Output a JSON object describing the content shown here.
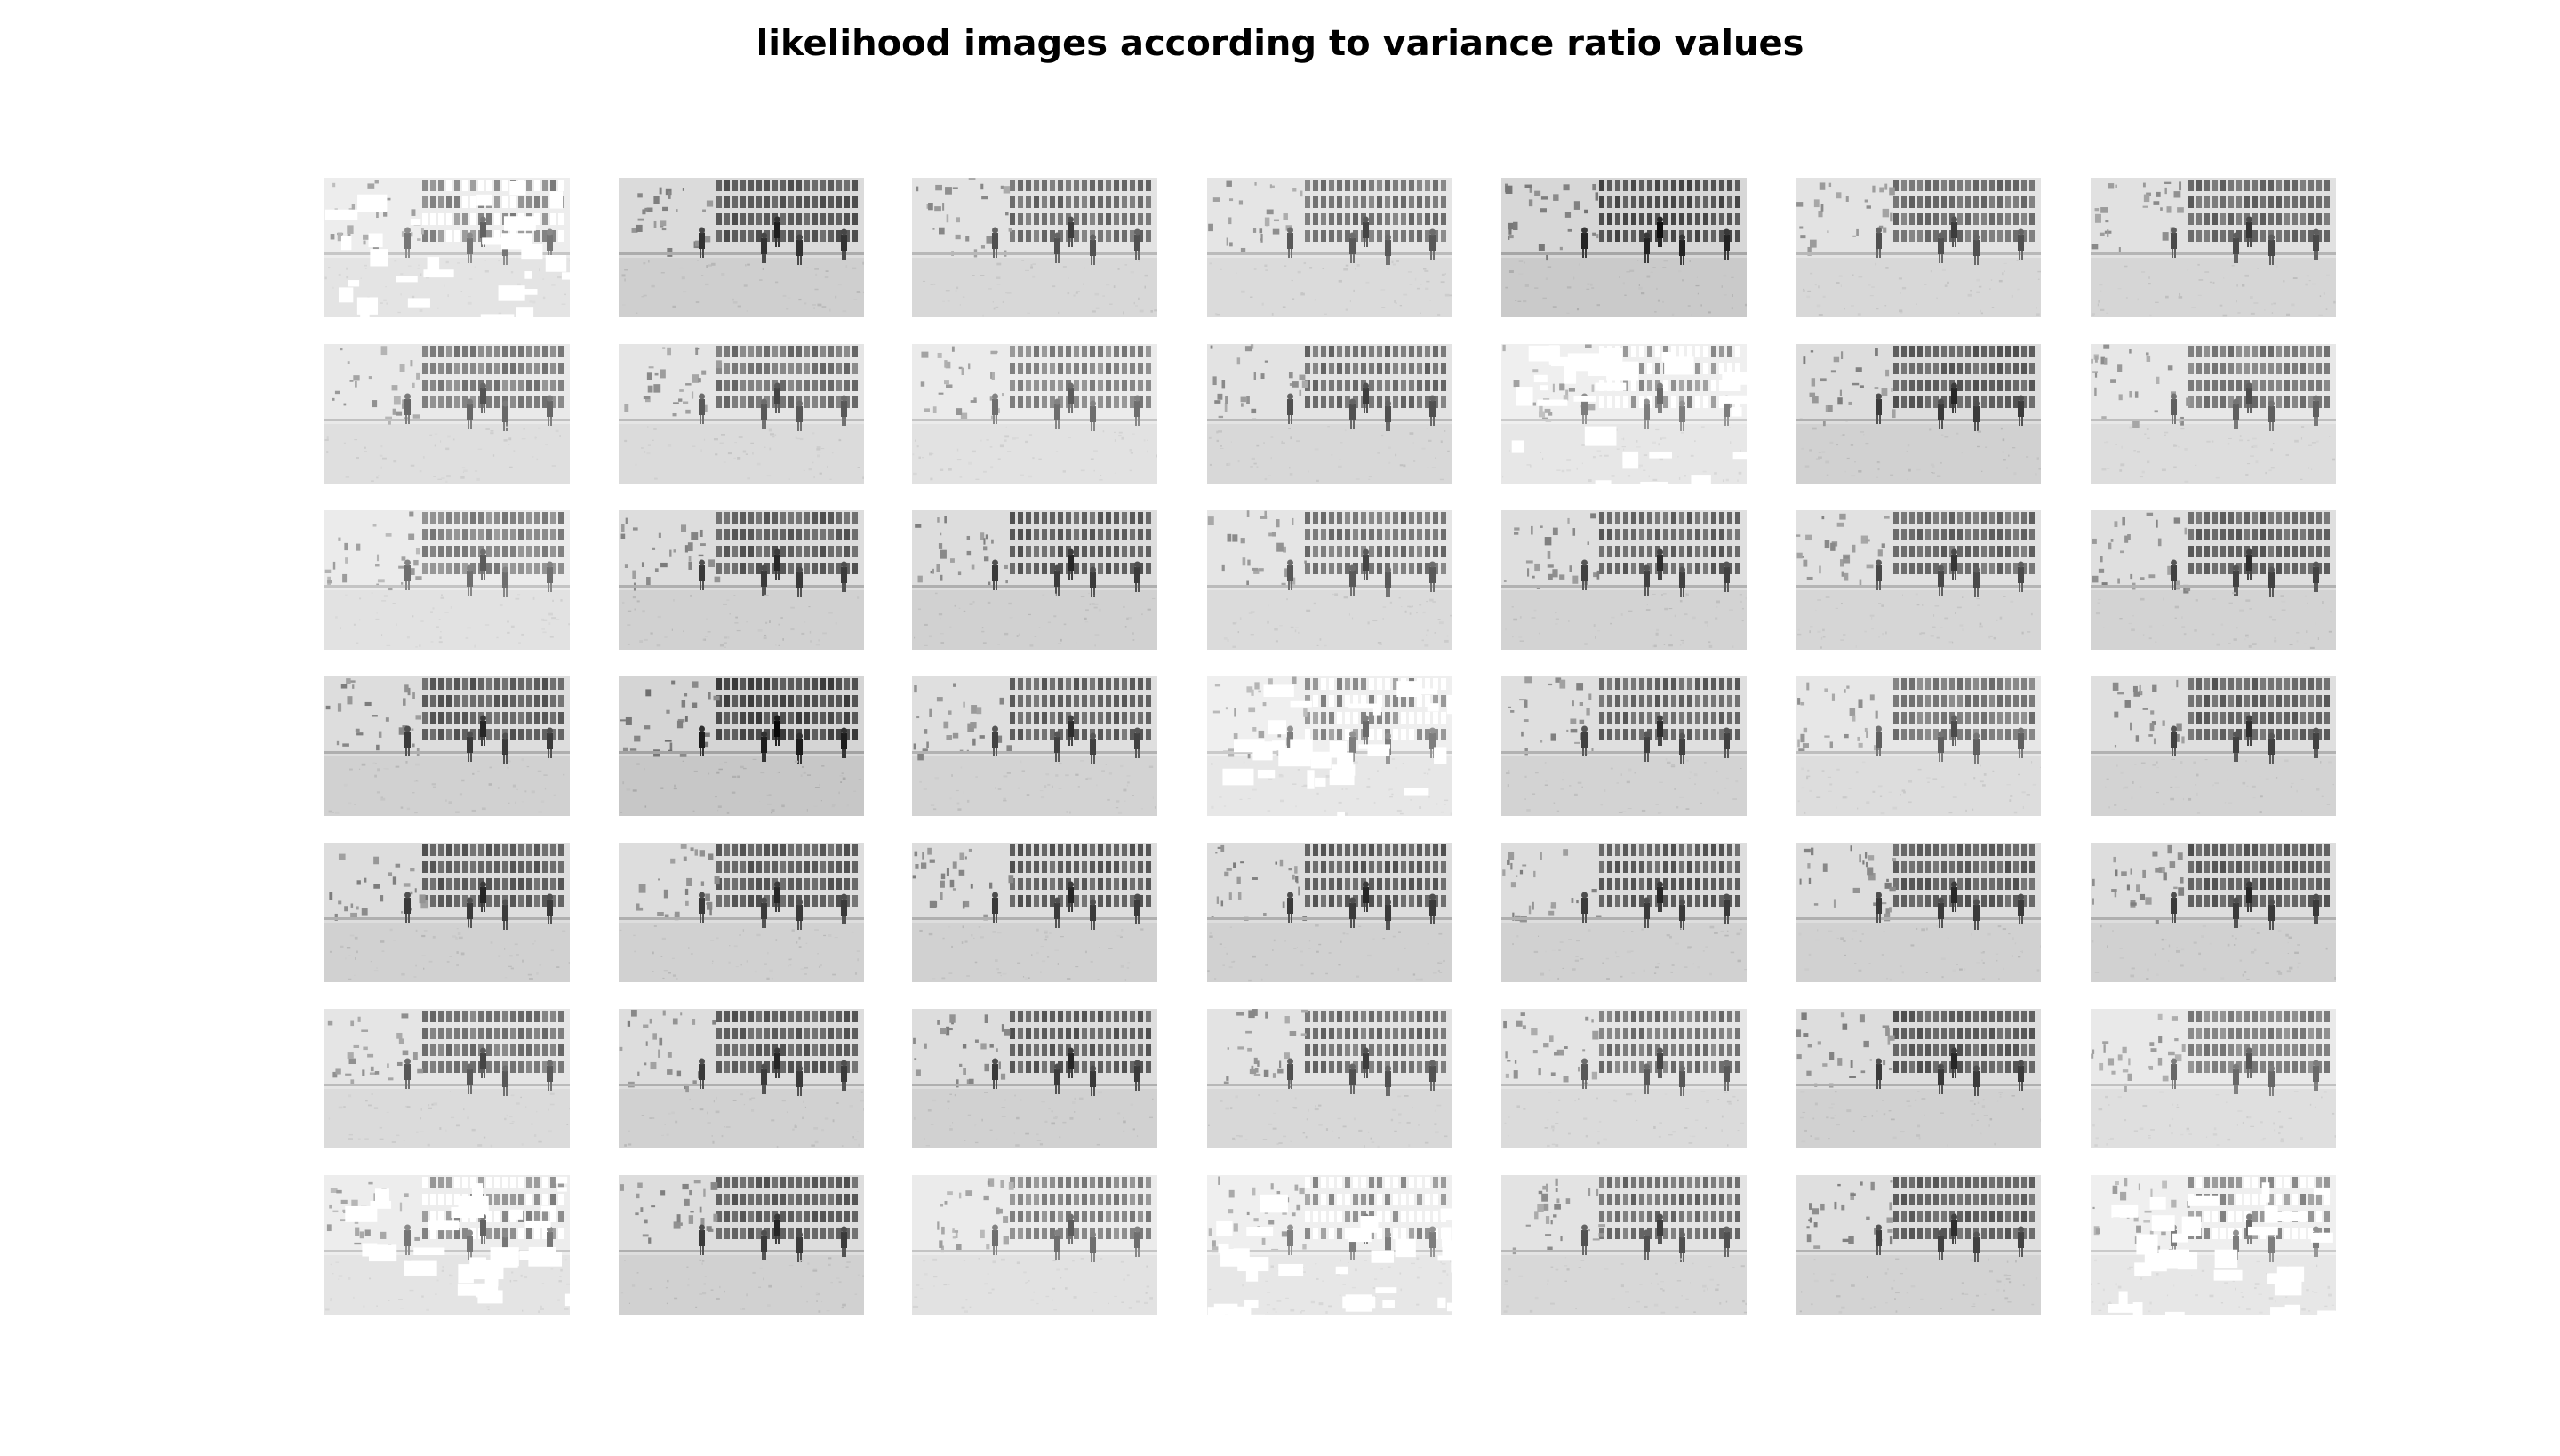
{
  "figure": {
    "title": "likelihood images according to variance ratio values",
    "grid": {
      "rows": 7,
      "cols": 7
    },
    "tiles": [
      {
        "tone": 0.35,
        "bg": "#ffffff",
        "bleached": true
      },
      {
        "tone": 0.8,
        "bg": "#ececec",
        "bleached": false
      },
      {
        "tone": 0.6,
        "bg": "#f2f2f2",
        "bleached": false
      },
      {
        "tone": 0.55,
        "bg": "#f3f3f3",
        "bleached": false
      },
      {
        "tone": 0.9,
        "bg": "#e8e8e8",
        "bleached": false
      },
      {
        "tone": 0.6,
        "bg": "#f0f0f0",
        "bleached": false
      },
      {
        "tone": 0.65,
        "bg": "#efefef",
        "bleached": false
      },
      {
        "tone": 0.45,
        "bg": "#f4f4f4",
        "bleached": false
      },
      {
        "tone": 0.55,
        "bg": "#f1f1f1",
        "bleached": false
      },
      {
        "tone": 0.4,
        "bg": "#f6f6f6",
        "bleached": false
      },
      {
        "tone": 0.6,
        "bg": "#efefef",
        "bleached": false
      },
      {
        "tone": 0.3,
        "bg": "#ffffff",
        "bleached": true
      },
      {
        "tone": 0.75,
        "bg": "#ececec",
        "bleached": false
      },
      {
        "tone": 0.5,
        "bg": "#f3f3f3",
        "bleached": false
      },
      {
        "tone": 0.4,
        "bg": "#f3f3f3",
        "bleached": false
      },
      {
        "tone": 0.75,
        "bg": "#ededed",
        "bleached": false
      },
      {
        "tone": 0.75,
        "bg": "#eeeeee",
        "bleached": false
      },
      {
        "tone": 0.55,
        "bg": "#f1f1f1",
        "bleached": false
      },
      {
        "tone": 0.7,
        "bg": "#f0f0f0",
        "bleached": false
      },
      {
        "tone": 0.65,
        "bg": "#f0f0f0",
        "bleached": false
      },
      {
        "tone": 0.7,
        "bg": "#eeeeee",
        "bleached": false
      },
      {
        "tone": 0.75,
        "bg": "#f1f1f1",
        "bleached": false
      },
      {
        "tone": 0.95,
        "bg": "#e4e4e4",
        "bleached": false
      },
      {
        "tone": 0.7,
        "bg": "#f0f0f0",
        "bleached": false
      },
      {
        "tone": 0.3,
        "bg": "#ffffff",
        "bleached": true
      },
      {
        "tone": 0.7,
        "bg": "#f0f0f0",
        "bleached": false
      },
      {
        "tone": 0.5,
        "bg": "#f5f5f5",
        "bleached": false
      },
      {
        "tone": 0.7,
        "bg": "#f0f0f0",
        "bleached": false
      },
      {
        "tone": 0.75,
        "bg": "#f1f1f1",
        "bleached": false
      },
      {
        "tone": 0.75,
        "bg": "#f1f1f1",
        "bleached": false
      },
      {
        "tone": 0.75,
        "bg": "#f1f1f1",
        "bleached": false
      },
      {
        "tone": 0.75,
        "bg": "#f1f1f1",
        "bleached": false
      },
      {
        "tone": 0.75,
        "bg": "#f1f1f1",
        "bleached": false
      },
      {
        "tone": 0.75,
        "bg": "#f1f1f1",
        "bleached": false
      },
      {
        "tone": 0.75,
        "bg": "#f1f1f1",
        "bleached": false
      },
      {
        "tone": 0.55,
        "bg": "#f2f2f2",
        "bleached": false
      },
      {
        "tone": 0.75,
        "bg": "#f1f1f1",
        "bleached": false
      },
      {
        "tone": 0.75,
        "bg": "#f1f1f1",
        "bleached": false
      },
      {
        "tone": 0.6,
        "bg": "#f2f2f2",
        "bleached": false
      },
      {
        "tone": 0.55,
        "bg": "#f2f2f2",
        "bleached": false
      },
      {
        "tone": 0.75,
        "bg": "#f1f1f1",
        "bleached": false
      },
      {
        "tone": 0.45,
        "bg": "#f6f6f6",
        "bleached": false
      },
      {
        "tone": 0.35,
        "bg": "#ffffff",
        "bleached": true
      },
      {
        "tone": 0.75,
        "bg": "#f1f1f1",
        "bleached": false
      },
      {
        "tone": 0.4,
        "bg": "#f5f5f5",
        "bleached": false
      },
      {
        "tone": 0.3,
        "bg": "#ffffff",
        "bleached": true
      },
      {
        "tone": 0.6,
        "bg": "#f2f2f2",
        "bleached": false
      },
      {
        "tone": 0.7,
        "bg": "#f0f0f0",
        "bleached": false
      },
      {
        "tone": 0.3,
        "bg": "#ffffff",
        "bleached": true
      }
    ]
  }
}
